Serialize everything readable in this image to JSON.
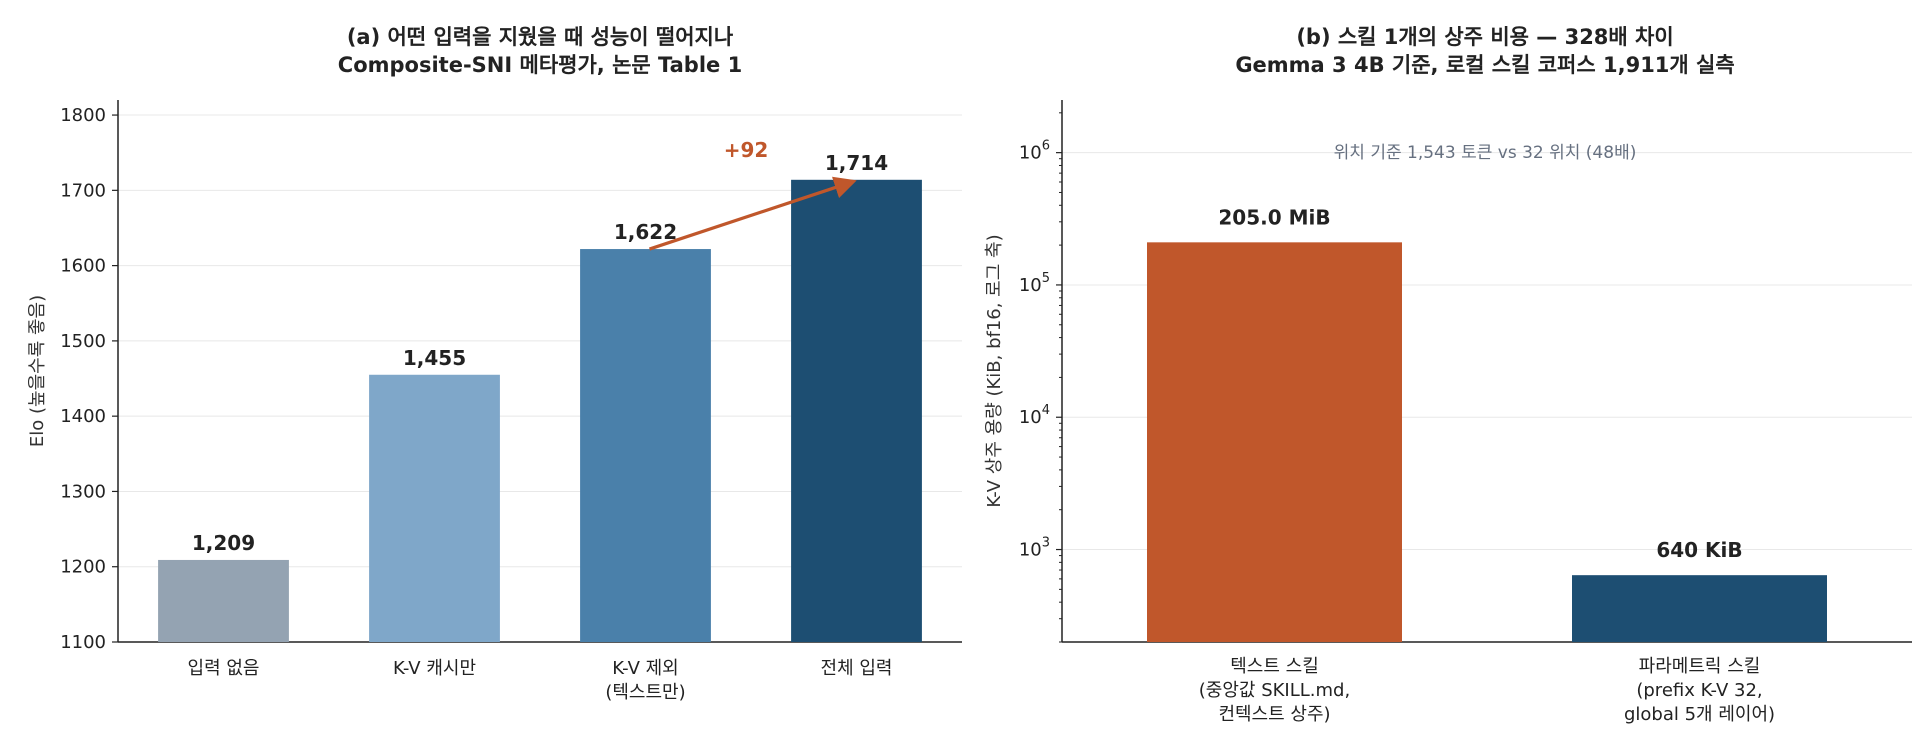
{
  "colors": {
    "accent": "#c0572b",
    "text": "#222222",
    "grid": "#e8e8e8",
    "axis": "#222222",
    "note": "#667080"
  },
  "chart_data": [
    {
      "type": "bar",
      "title": [
        "(a) 어떤 입력을 지웠을 때 성능이 떨어지나",
        "Composite-SNI 메타평가, 논문 Table 1"
      ],
      "ylabel": "Elo (높을수록 좋음)",
      "ylim": [
        1100,
        1820
      ],
      "yticks": [
        1100,
        1200,
        1300,
        1400,
        1500,
        1600,
        1700,
        1800
      ],
      "grid": true,
      "categories": [
        [
          "입력 없음"
        ],
        [
          "K-V 캐시만"
        ],
        [
          "K-V 제외",
          "(텍스트만)"
        ],
        [
          "전체 입력"
        ]
      ],
      "values": [
        1209,
        1455,
        1622,
        1714
      ],
      "value_labels": [
        "1,209",
        "1,455",
        "1,622",
        "1,714"
      ],
      "bar_colors": [
        "#94a3b2",
        "#7fa7c9",
        "#4a80aa",
        "#1d4e72"
      ],
      "annotation": {
        "text": "+92",
        "from_category": 2,
        "to_category": 3,
        "color": "#c0572b"
      }
    },
    {
      "type": "bar",
      "title": [
        "(b) 스킬 1개의 상주 비용 — 328배 차이",
        "Gemma 3 4B 기준, 로컬 스킬 코퍼스 1,911개 실측"
      ],
      "ylabel": "K-V 상주 용량 (KiB, bf16, 로그 축)",
      "yscale": "log",
      "ylim": [
        200,
        2500000
      ],
      "ytick_exponents": [
        3,
        4,
        5,
        6
      ],
      "grid": true,
      "categories": [
        [
          "텍스트 스킬",
          "(중앙값 SKILL.md,",
          "컨텍스트 상주)"
        ],
        [
          "파라메트릭 스킬",
          "(prefix K-V 32,",
          "global 5개 레이어)"
        ]
      ],
      "values": [
        209920,
        640
      ],
      "value_labels": [
        "205.0 MiB",
        "640 KiB"
      ],
      "bar_colors": [
        "#c0572b",
        "#1d4e72"
      ],
      "note": "위치 기준 1,543 토큰  vs  32 위치  (48배)"
    }
  ]
}
